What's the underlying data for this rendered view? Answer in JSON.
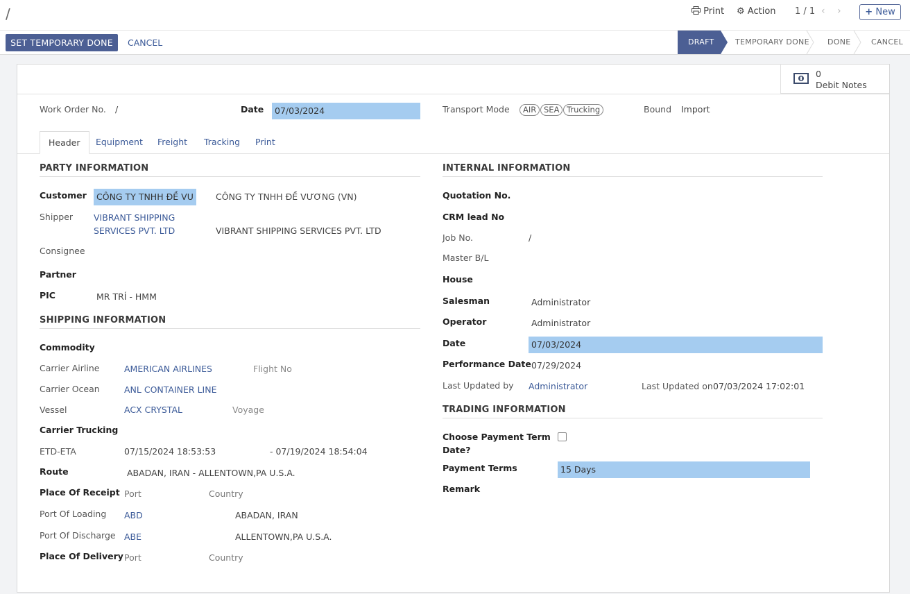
{
  "breadcrumb": "/",
  "toolbar": {
    "print": "Print",
    "action": "Action",
    "pager": "1 / 1",
    "prev": "‹",
    "next": "›",
    "new": "New"
  },
  "actions": {
    "set_temp_done": "SET TEMPORARY DONE",
    "cancel": "CANCEL"
  },
  "statusbar": [
    "DRAFT",
    "TEMPORARY DONE",
    "DONE",
    "CANCEL"
  ],
  "smart_button": {
    "count": "0",
    "label": "Debit Notes"
  },
  "top": {
    "work_order_label": "Work Order No.",
    "work_order_value": "/",
    "date_label": "Date",
    "date_value": "07/03/2024",
    "transport_label": "Transport Mode",
    "transport_tags": [
      "AIR",
      "SEA",
      "Trucking"
    ],
    "bound_label": "Bound",
    "bound_value": "Import"
  },
  "tabs": [
    "Header",
    "Equipment",
    "Freight",
    "Tracking",
    "Print"
  ],
  "party": {
    "title": "PARTY INFORMATION",
    "customer_label": "Customer",
    "customer_value": "CÔNG TY TNHH ĐỀ VU",
    "customer_full": "CÔNG TY TNHH ĐỀ VƯƠNG (VN)",
    "shipper_label": "Shipper",
    "shipper_line1": "VIBRANT SHIPPING",
    "shipper_line2": "SERVICES PVT. LTD",
    "shipper_full": "VIBRANT SHIPPING SERVICES PVT. LTD",
    "consignee_label": "Consignee",
    "partner_label": "Partner",
    "pic_label": "PIC",
    "pic_value": "MR TRÍ - HMM"
  },
  "shipping": {
    "title": "SHIPPING INFORMATION",
    "commodity_label": "Commodity",
    "carrier_airline_label": "Carrier Airline",
    "carrier_airline_value": "AMERICAN AIRLINES",
    "flight_no_label": "Flight No",
    "carrier_ocean_label": "Carrier Ocean",
    "carrier_ocean_value": "ANL CONTAINER LINE",
    "vessel_label": "Vessel",
    "vessel_value": "ACX CRYSTAL",
    "voyage_label": "Voyage",
    "carrier_trucking_label": "Carrier Trucking",
    "etd_eta_label": "ETD-ETA",
    "etd_value": "07/15/2024 18:53:53",
    "eta_value": "- 07/19/2024 18:54:04",
    "route_label": "Route",
    "route_value": "ABADAN, IRAN - ALLENTOWN,PA U.S.A.",
    "receipt_label": "Place Of Receipt",
    "receipt_port": "Port",
    "receipt_country": "Country",
    "loading_label": "Port Of Loading",
    "loading_port": "ABD",
    "loading_place": "ABADAN, IRAN",
    "discharge_label": "Port Of Discharge",
    "discharge_port": "ABE",
    "discharge_place": "ALLENTOWN,PA U.S.A.",
    "delivery_label": "Place Of Delivery",
    "delivery_port": "Port",
    "delivery_country": "Country"
  },
  "internal": {
    "title": "INTERNAL INFORMATION",
    "quotation_label": "Quotation No.",
    "crm_label": "CRM lead No",
    "job_label": "Job No.",
    "job_value": "/",
    "master_bl_label": "Master B/L",
    "house_label": "House",
    "salesman_label": "Salesman",
    "salesman_value": "Administrator",
    "operator_label": "Operator",
    "operator_value": "Administrator",
    "date_label": "Date",
    "date_value": "07/03/2024",
    "perf_date_label": "Performance Date",
    "perf_date_value": "07/29/2024",
    "last_updated_by_label": "Last Updated by",
    "last_updated_by_value": "Administrator",
    "last_updated_on_label": "Last Updated on",
    "last_updated_on_value": "07/03/2024 17:02:01"
  },
  "trading": {
    "title": "TRADING INFORMATION",
    "choose_label_1": "Choose Payment Term",
    "choose_label_2": "Date?",
    "payment_terms_label": "Payment Terms",
    "payment_terms_value": "15 Days",
    "remark_label": "Remark"
  },
  "colors": {
    "primary": "#4c5f94",
    "link": "#3b5a98",
    "highlight": "#a5ccf0"
  }
}
